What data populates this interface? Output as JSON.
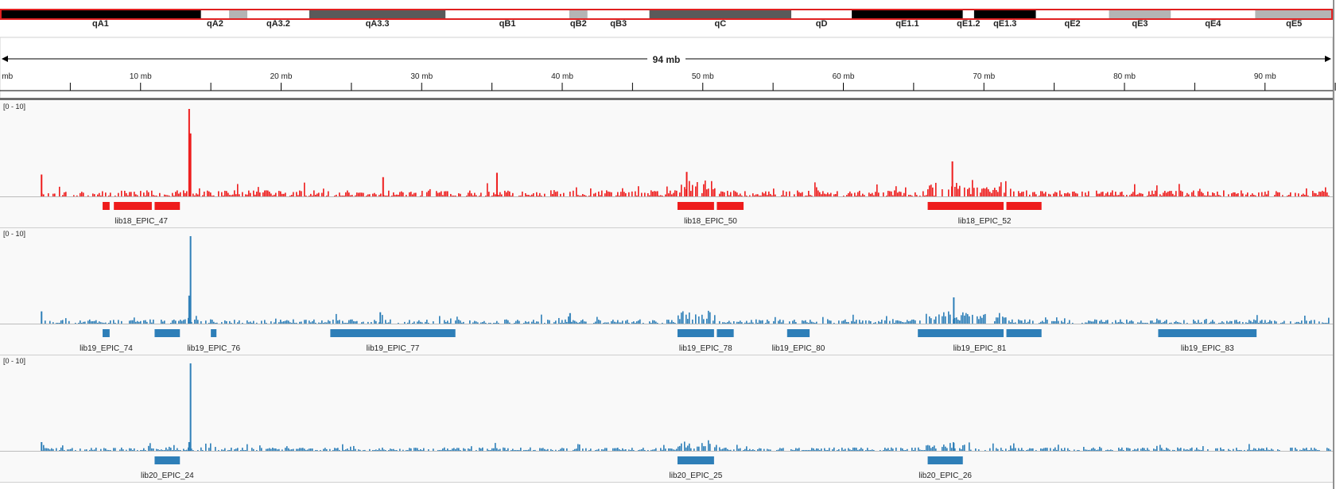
{
  "ideogram": {
    "bands": [
      {
        "name": "qA1",
        "stain": "black",
        "start": 0,
        "end": 14.3
      },
      {
        "name": "qA2",
        "stain": "white",
        "start": 14.3,
        "end": 16.3
      },
      {
        "name": "",
        "stain": "light",
        "start": 16.3,
        "end": 17.6
      },
      {
        "name": "qA3.2",
        "stain": "white",
        "start": 17.6,
        "end": 22.0
      },
      {
        "name": "qA3.3",
        "stain": "dark",
        "start": 22.0,
        "end": 31.7
      },
      {
        "name": "qB1",
        "stain": "white",
        "start": 31.7,
        "end": 40.5
      },
      {
        "name": "qB2",
        "stain": "light",
        "start": 40.5,
        "end": 41.8
      },
      {
        "name": "qB3",
        "stain": "white",
        "start": 41.8,
        "end": 46.2
      },
      {
        "name": "qC",
        "stain": "dark",
        "start": 46.2,
        "end": 56.3
      },
      {
        "name": "qD",
        "stain": "white",
        "start": 56.3,
        "end": 60.6
      },
      {
        "name": "qE1.1",
        "stain": "black",
        "start": 60.6,
        "end": 68.5
      },
      {
        "name": "qE1.2",
        "stain": "white",
        "start": 68.5,
        "end": 69.3
      },
      {
        "name": "qE1.3",
        "stain": "black",
        "start": 69.3,
        "end": 73.7
      },
      {
        "name": "qE2",
        "stain": "white",
        "start": 73.7,
        "end": 78.9
      },
      {
        "name": "qE3",
        "stain": "light",
        "start": 78.9,
        "end": 83.3
      },
      {
        "name": "qE4",
        "stain": "white",
        "start": 83.3,
        "end": 89.3
      },
      {
        "name": "qE5",
        "stain": "light",
        "start": 89.3,
        "end": 95.5
      }
    ],
    "colors": {
      "black": "#000000",
      "dark": "#5a5a5a",
      "light": "#b4b4b4",
      "white": "#ffffff",
      "outline": "#e02020"
    }
  },
  "ruler": {
    "span_label": "94 mb",
    "start_label": "0 mb",
    "ticks": [
      {
        "mb": 10,
        "label": "10 mb"
      },
      {
        "mb": 20,
        "label": "20 mb"
      },
      {
        "mb": 30,
        "label": "30 mb"
      },
      {
        "mb": 40,
        "label": "40 mb"
      },
      {
        "mb": 50,
        "label": "50 mb"
      },
      {
        "mb": 60,
        "label": "60 mb"
      },
      {
        "mb": 70,
        "label": "70 mb"
      },
      {
        "mb": 80,
        "label": "80 mb"
      },
      {
        "mb": 90,
        "label": "90 mb"
      }
    ]
  },
  "tracks": [
    {
      "range_label": "[0 - 10]",
      "color": "#ee1c1c",
      "seed": 17,
      "peaks": [
        {
          "mb": 13.4,
          "h": 1.0
        },
        {
          "mb": 13.5,
          "h": 0.72
        },
        {
          "mb": 2.9,
          "h": 0.25
        },
        {
          "mb": 67.7,
          "h": 0.4
        },
        {
          "mb": 35.3,
          "h": 0.27
        },
        {
          "mb": 48.8,
          "h": 0.28
        },
        {
          "mb": 27.2,
          "h": 0.22
        }
      ],
      "hotspots": [
        [
          48.2,
          51.0,
          0.14
        ],
        [
          65.8,
          71.6,
          0.12
        ]
      ],
      "regions": [
        {
          "name": "lib18_EPIC_47",
          "segments": [
            [
              7.3,
              7.8
            ],
            [
              8.1,
              10.8
            ],
            [
              11.0,
              12.8
            ]
          ]
        },
        {
          "name": "lib18_EPIC_50",
          "segments": [
            [
              48.2,
              50.8
            ],
            [
              51.0,
              52.9
            ]
          ]
        },
        {
          "name": "lib18_EPIC_52",
          "segments": [
            [
              66.0,
              71.4
            ],
            [
              71.6,
              74.1
            ]
          ]
        }
      ]
    },
    {
      "range_label": "[0 - 10]",
      "color": "#2e7fb8",
      "seed": 53,
      "peaks": [
        {
          "mb": 13.5,
          "h": 1.0
        },
        {
          "mb": 13.4,
          "h": 0.32
        },
        {
          "mb": 67.8,
          "h": 0.3
        },
        {
          "mb": 2.9,
          "h": 0.14
        },
        {
          "mb": 27.0,
          "h": 0.13
        },
        {
          "mb": 40.5,
          "h": 0.12
        }
      ],
      "hotspots": [
        [
          48.2,
          51.0,
          0.12
        ],
        [
          65.8,
          71.6,
          0.1
        ]
      ],
      "regions": [
        {
          "name": "lib19_EPIC_74",
          "segments": [
            [
              7.3,
              7.8
            ]
          ]
        },
        {
          "name": "",
          "segments": [
            [
              11.0,
              12.8
            ]
          ]
        },
        {
          "name": "lib19_EPIC_76",
          "segments": [
            [
              15.0,
              15.4
            ]
          ]
        },
        {
          "name": "lib19_EPIC_77",
          "segments": [
            [
              23.5,
              32.4
            ]
          ]
        },
        {
          "name": "lib19_EPIC_78",
          "segments": [
            [
              48.2,
              50.8
            ],
            [
              51.0,
              52.2
            ]
          ]
        },
        {
          "name": "lib19_EPIC_80",
          "segments": [
            [
              56.0,
              57.6
            ]
          ]
        },
        {
          "name": "lib19_EPIC_81",
          "segments": [
            [
              65.3,
              71.4
            ],
            [
              71.6,
              74.1
            ]
          ]
        },
        {
          "name": "lib19_EPIC_83",
          "segments": [
            [
              82.4,
              89.4
            ]
          ]
        }
      ]
    },
    {
      "range_label": "[0 - 10]",
      "color": "#2e7fb8",
      "seed": 91,
      "peaks": [
        {
          "mb": 13.5,
          "h": 1.0
        },
        {
          "mb": 13.4,
          "h": 0.1
        },
        {
          "mb": 2.9,
          "h": 0.1
        },
        {
          "mb": 67.8,
          "h": 0.09
        }
      ],
      "hotspots": [
        [
          48.2,
          51.0,
          0.09
        ],
        [
          65.8,
          69.0,
          0.08
        ]
      ],
      "regions": [
        {
          "name": "lib20_EPIC_24",
          "segments": [
            [
              11.0,
              12.8
            ]
          ]
        },
        {
          "name": "lib20_EPIC_25",
          "segments": [
            [
              48.2,
              50.8
            ]
          ]
        },
        {
          "name": "lib20_EPIC_26",
          "segments": [
            [
              66.0,
              68.5
            ]
          ]
        }
      ]
    }
  ]
}
